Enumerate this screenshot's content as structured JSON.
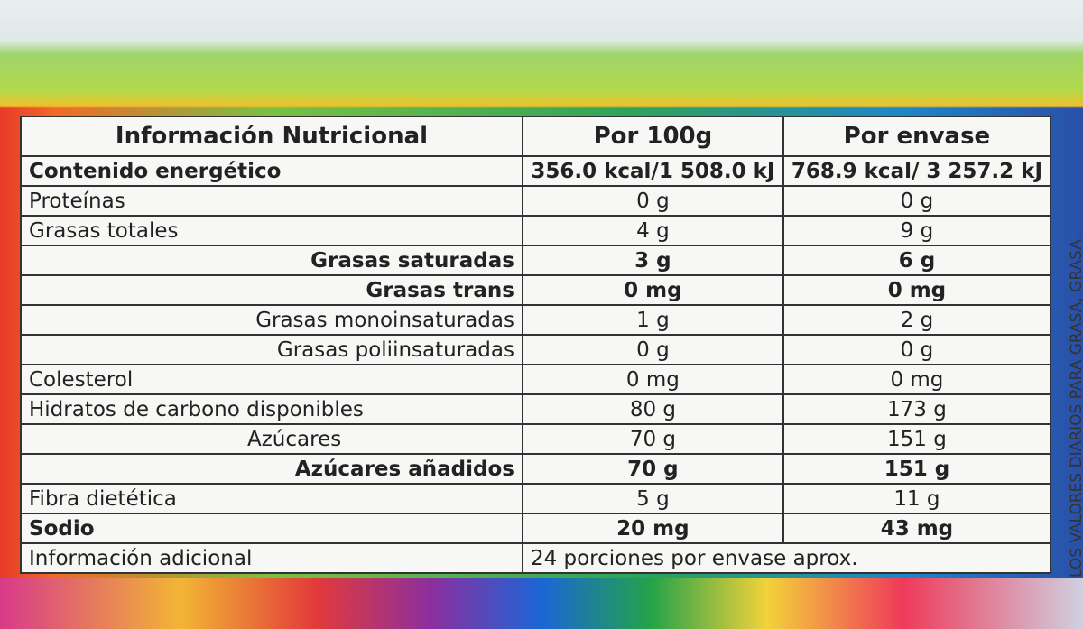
{
  "table": {
    "header": [
      "Información Nutricional",
      "Por 100g",
      "Por  envase"
    ],
    "rows": [
      [
        "Contenido energético",
        "356.0 kcal/1 508.0 kJ",
        "768.9 kcal/ 3 257.2 kJ"
      ],
      [
        "Proteínas",
        "0 g",
        "0 g"
      ],
      [
        "Grasas totales",
        "4 g",
        "9 g"
      ],
      [
        "Grasas saturadas",
        "3 g",
        "6 g"
      ],
      [
        "Grasas trans",
        "0 mg",
        "0 mg"
      ],
      [
        "Grasas monoinsaturadas",
        "1 g",
        "2 g"
      ],
      [
        "Grasas poliinsaturadas",
        "0 g",
        "0 g"
      ],
      [
        "Colesterol",
        "0 mg",
        "0 mg"
      ],
      [
        "Hidratos de carbono disponibles",
        "80 g",
        "173 g"
      ],
      [
        "Azúcares",
        "70 g",
        "151 g"
      ],
      [
        "Azúcares añadidos",
        "70 g",
        "151 g"
      ],
      [
        "Fibra dietética",
        "5 g",
        "11 g"
      ],
      [
        "Sodio",
        "20 mg",
        "43 mg"
      ]
    ],
    "footer": [
      "Información adicional",
      "24 porciones por envase aprox."
    ]
  },
  "side_text": "LOS VALORES DIARIOS PARA GRASA, GRASA"
}
